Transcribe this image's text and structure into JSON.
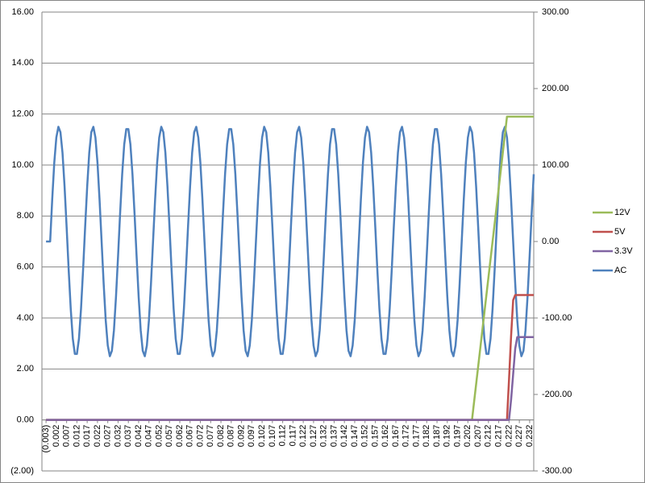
{
  "chart_data": {
    "type": "line",
    "xlim": [
      -0.005,
      0.234
    ],
    "ylim": [
      -2,
      16
    ],
    "y2lim": [
      -300,
      300
    ],
    "grid": true,
    "legend": "right",
    "xticks": [
      {
        "value": -0.003,
        "label": "(0.003)"
      },
      0.002,
      0.007,
      0.012,
      0.017,
      0.022,
      0.027,
      0.032,
      0.037,
      0.042,
      0.047,
      0.052,
      0.057,
      0.062,
      0.067,
      0.072,
      0.077,
      0.082,
      0.087,
      0.092,
      0.097,
      0.102,
      0.107,
      0.112,
      0.117,
      0.122,
      0.127,
      0.132,
      0.137,
      0.142,
      0.147,
      0.152,
      0.157,
      0.162,
      0.167,
      0.172,
      0.177,
      0.182,
      0.187,
      0.192,
      0.197,
      0.202,
      0.207,
      0.212,
      0.217,
      0.222,
      0.227,
      0.232
    ],
    "yticks": [
      {
        "value": -2,
        "label": "(2.00)"
      },
      {
        "value": 0,
        "label": "0.00"
      },
      {
        "value": 2,
        "label": "2.00"
      },
      {
        "value": 4,
        "label": "4.00"
      },
      {
        "value": 6,
        "label": "6.00"
      },
      {
        "value": 8,
        "label": "8.00"
      },
      {
        "value": 10,
        "label": "10.00"
      },
      {
        "value": 12,
        "label": "12.00"
      },
      {
        "value": 14,
        "label": "14.00"
      },
      {
        "value": 16,
        "label": "16.00"
      }
    ],
    "y2ticks": [
      {
        "value": -300,
        "label": "-300.00"
      },
      {
        "value": -200,
        "label": "-200.00"
      },
      {
        "value": -100,
        "label": "-100.00"
      },
      {
        "value": 0,
        "label": "0.00"
      },
      {
        "value": 100,
        "label": "100.00"
      },
      {
        "value": 200,
        "label": "200.00"
      },
      {
        "value": 300,
        "label": "300.00"
      }
    ],
    "series": [
      {
        "name": "12V",
        "color": "#9bbb59",
        "x": [
          -0.003,
          0.204,
          0.206,
          0.208,
          0.21,
          0.212,
          0.214,
          0.216,
          0.218,
          0.22,
          0.221,
          0.225,
          0.23,
          0.234
        ],
        "values": [
          0,
          0,
          1.4,
          2.8,
          4.2,
          5.6,
          7.0,
          8.4,
          9.8,
          11.2,
          11.9,
          11.9,
          11.9,
          11.9
        ]
      },
      {
        "name": "5V",
        "color": "#c0504d",
        "x": [
          -0.003,
          0.221,
          0.222,
          0.223,
          0.224,
          0.225,
          0.234
        ],
        "values": [
          0,
          0,
          1.6,
          3.3,
          4.7,
          4.9,
          4.9
        ]
      },
      {
        "name": "3.3V",
        "color": "#8064a2",
        "x": [
          -0.003,
          0.222,
          0.223,
          0.224,
          0.225,
          0.226,
          0.234
        ],
        "values": [
          0,
          0,
          0.8,
          1.8,
          2.8,
          3.25,
          3.25
        ]
      },
      {
        "name": "AC",
        "color": "#4f81bd",
        "axis": "y2",
        "x": [
          -0.003,
          -0.002,
          -0.001,
          0,
          0.001,
          0.002,
          0.003,
          0.004,
          0.005,
          0.006,
          0.007,
          0.008,
          0.009,
          0.01,
          0.011,
          0.012,
          0.013,
          0.014,
          0.015,
          0.016,
          0.017,
          0.018,
          0.019,
          0.02,
          0.021,
          0.022,
          0.023,
          0.024,
          0.025,
          0.026,
          0.027,
          0.028,
          0.029,
          0.03,
          0.031,
          0.032,
          0.033,
          0.034,
          0.035,
          0.036,
          0.037,
          0.038,
          0.039,
          0.04,
          0.041,
          0.042,
          0.043,
          0.044,
          0.045,
          0.046,
          0.047,
          0.048,
          0.049,
          0.05,
          0.051,
          0.052,
          0.053,
          0.054,
          0.055,
          0.056,
          0.057,
          0.058,
          0.059,
          0.06,
          0.061,
          0.062,
          0.063,
          0.064,
          0.065,
          0.066,
          0.067,
          0.068,
          0.069,
          0.07,
          0.071,
          0.072,
          0.073,
          0.074,
          0.075,
          0.076,
          0.077,
          0.078,
          0.079,
          0.08,
          0.081,
          0.082,
          0.083,
          0.084,
          0.085,
          0.086,
          0.087,
          0.088,
          0.089,
          0.09,
          0.091,
          0.092,
          0.093,
          0.094,
          0.095,
          0.096,
          0.097,
          0.098,
          0.099,
          0.1,
          0.101,
          0.102,
          0.103,
          0.104,
          0.105,
          0.106,
          0.107,
          0.108,
          0.109,
          0.11,
          0.111,
          0.112,
          0.113,
          0.114,
          0.115,
          0.116,
          0.117,
          0.118,
          0.119,
          0.12,
          0.121,
          0.122,
          0.123,
          0.124,
          0.125,
          0.126,
          0.127,
          0.128,
          0.129,
          0.13,
          0.131,
          0.132,
          0.133,
          0.134,
          0.135,
          0.136,
          0.137,
          0.138,
          0.139,
          0.14,
          0.141,
          0.142,
          0.143,
          0.144,
          0.145,
          0.146,
          0.147,
          0.148,
          0.149,
          0.15,
          0.151,
          0.152,
          0.153,
          0.154,
          0.155,
          0.156,
          0.157,
          0.158,
          0.159,
          0.16,
          0.161,
          0.162,
          0.163,
          0.164,
          0.165,
          0.166,
          0.167,
          0.168,
          0.169,
          0.17,
          0.171,
          0.172,
          0.173,
          0.174,
          0.175,
          0.176,
          0.177,
          0.178,
          0.179,
          0.18,
          0.181,
          0.182,
          0.183,
          0.184,
          0.185,
          0.186,
          0.187,
          0.188,
          0.189,
          0.19,
          0.191,
          0.192,
          0.193,
          0.194,
          0.195,
          0.196,
          0.197,
          0.198,
          0.199,
          0.2,
          0.201,
          0.202,
          0.203,
          0.204,
          0.205,
          0.206,
          0.207,
          0.208,
          0.209,
          0.21,
          0.211,
          0.212,
          0.213,
          0.214,
          0.215,
          0.216,
          0.217,
          0.218,
          0.219,
          0.22,
          0.221,
          0.222,
          0.223,
          0.224,
          0.225,
          0.226,
          0.227,
          0.228,
          0.229,
          0.23,
          0.231,
          0.232,
          0.233,
          0.234
        ],
        "values": [
          0,
          0,
          0,
          55,
          103,
          136,
          150,
          143,
          116,
          72,
          19,
          -37,
          -88,
          -127,
          -147,
          -147,
          -127,
          -88,
          -37,
          19,
          72,
          116,
          143,
          150,
          136,
          103,
          55,
          0,
          -55,
          -103,
          -136,
          -150,
          -143,
          -116,
          -72,
          -19,
          37,
          88,
          127,
          147,
          147,
          127,
          88,
          37,
          -19,
          -72,
          -116,
          -143,
          -150,
          -136,
          -103,
          -55,
          0,
          55,
          103,
          136,
          150,
          143,
          116,
          72,
          19,
          -37,
          -88,
          -127,
          -147,
          -147,
          -127,
          -88,
          -37,
          19,
          72,
          116,
          143,
          150,
          136,
          103,
          55,
          0,
          -55,
          -103,
          -136,
          -150,
          -143,
          -116,
          -72,
          -19,
          37,
          88,
          127,
          147,
          147,
          127,
          88,
          37,
          -19,
          -72,
          -116,
          -143,
          -150,
          -136,
          -103,
          -55,
          0,
          55,
          103,
          136,
          150,
          143,
          116,
          72,
          19,
          -37,
          -88,
          -127,
          -147,
          -147,
          -127,
          -88,
          -37,
          19,
          72,
          116,
          143,
          150,
          136,
          103,
          55,
          0,
          -55,
          -103,
          -136,
          -150,
          -143,
          -116,
          -72,
          -19,
          37,
          88,
          127,
          147,
          147,
          127,
          88,
          37,
          -19,
          -72,
          -116,
          -143,
          -150,
          -136,
          -103,
          -55,
          0,
          55,
          103,
          136,
          150,
          143,
          116,
          72,
          19,
          -37,
          -88,
          -127,
          -147,
          -147,
          -127,
          -88,
          -37,
          19,
          72,
          116,
          143,
          150,
          136,
          103,
          55,
          0,
          -55,
          -103,
          -136,
          -150,
          -143,
          -116,
          -72,
          -19,
          37,
          88,
          127,
          147,
          147,
          127,
          88,
          37,
          -19,
          -72,
          -116,
          -143,
          -150,
          -136,
          -103,
          -55,
          0,
          55,
          103,
          136,
          150,
          143,
          116,
          72,
          19,
          -37,
          -88,
          -127,
          -147,
          -147,
          -127,
          -88,
          -37,
          19,
          72,
          116,
          143,
          150,
          136,
          103,
          55,
          0,
          -55,
          -103,
          -136,
          -150,
          -143,
          -116,
          -72,
          -19,
          37,
          88
        ]
      }
    ]
  }
}
